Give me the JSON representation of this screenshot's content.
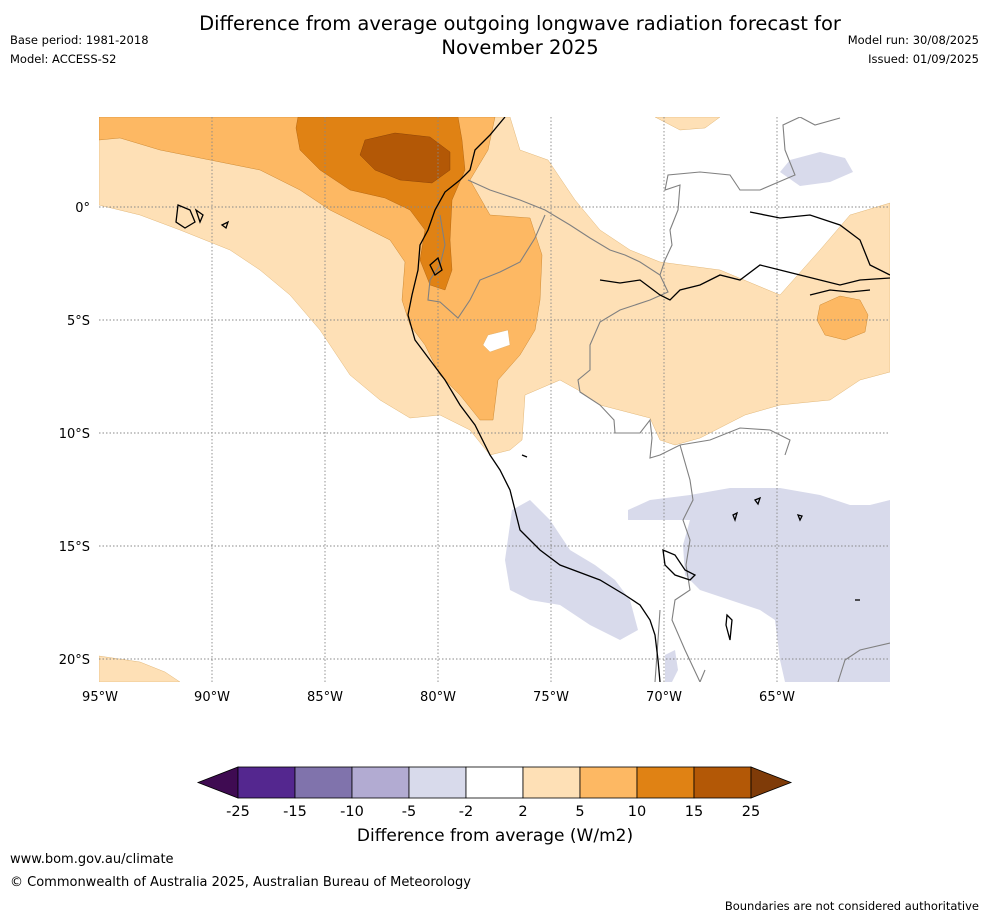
{
  "header": {
    "title_line1": "Difference from average outgoing longwave radiation forecast for",
    "title_line2": "November 2025",
    "base_period": "Base period: 1981-2018",
    "model": "Model: ACCESS-S2",
    "model_run": "Model run: 30/08/2025",
    "issued": "Issued: 01/09/2025"
  },
  "map": {
    "latitude_labels": [
      "0°",
      "5°S",
      "10°S",
      "15°S",
      "20°S"
    ],
    "longitude_labels": [
      "95°W",
      "90°W",
      "85°W",
      "80°W",
      "75°W",
      "70°W",
      "65°W"
    ],
    "extent": {
      "lon_min": -95,
      "lon_max": -60,
      "lat_min": -21,
      "lat_max": 4
    },
    "graticule": "dotted grey",
    "colors": {
      "lt_minus_25": "#3f0b52",
      "minus_25_to_minus_15": "#54278f",
      "minus_15_to_minus_10": "#8073ac",
      "minus_10_to_minus_5": "#b2abd2",
      "minus_5_to_minus_2": "#d8daeb",
      "minus_2_to_2": "#ffffff",
      "2_to_5": "#fee0b6",
      "5_to_10": "#fdb863",
      "10_to_15": "#e08214",
      "15_to_25": "#b35806",
      "gt_25": "#7f3b08"
    }
  },
  "colorbar": {
    "ticks": [
      "-25",
      "-15",
      "-10",
      "-5",
      "-2",
      "2",
      "5",
      "10",
      "15",
      "25"
    ],
    "label": "Difference from average (W/m2)"
  },
  "footer": {
    "url": "www.bom.gov.au/climate",
    "copyright": "© Commonwealth of Australia 2025, Australian Bureau of Meteorology",
    "disclaimer": "Boundaries are not considered authoritative"
  }
}
